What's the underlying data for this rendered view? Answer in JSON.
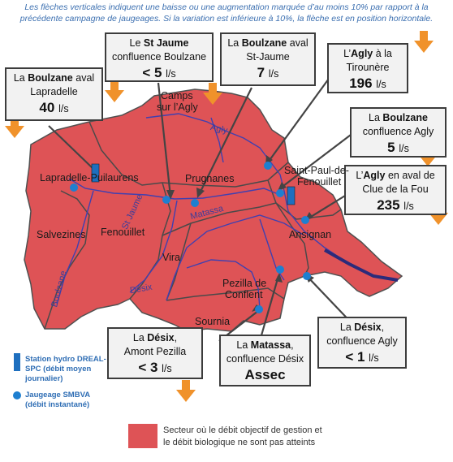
{
  "note": {
    "line1": "Les flèches verticales indiquent une baisse ou une augmentation marquée d’au moins 10% par rapport à la",
    "line2": "précédente campagne de jaugeages. Si la variation est inférieure à 10%, la flèche est en position horizontale."
  },
  "stations": [
    {
      "pre": "La ",
      "river": "Boulzane",
      "post": " aval",
      "loc": "Lapradelle",
      "value": "40",
      "unit": "l/s",
      "trend": "down"
    },
    {
      "pre": "Le ",
      "river": "St Jaume",
      "post": "",
      "loc": "confluence Boulzane",
      "value": "< 5",
      "unit": "l/s",
      "trend": "down"
    },
    {
      "pre": "La ",
      "river": "Boulzane",
      "post": " aval",
      "loc": "St-Jaume",
      "value": "7",
      "unit": "l/s",
      "trend": "down"
    },
    {
      "pre": "L’",
      "river": "Agly",
      "post": " à la",
      "loc": "Tirounère",
      "value": "196",
      "unit": "l/s",
      "trend": "down"
    },
    {
      "pre": "La ",
      "river": "Boulzane",
      "post": "",
      "loc": "confluence Agly",
      "value": "5",
      "unit": "l/s",
      "trend": "down"
    },
    {
      "pre": "L’",
      "river": "Agly",
      "post": " en aval de",
      "loc": "Clue de la Fou",
      "value": "235",
      "unit": "l/s",
      "trend": "down"
    },
    {
      "pre": "La ",
      "river": "Désix",
      "post": ",",
      "loc": "Amont Pezilla",
      "value": "< 3",
      "unit": "l/s",
      "trend": "down"
    },
    {
      "pre": "La ",
      "river": "Matassa",
      "post": ",",
      "loc": "confluence Désix",
      "value": "Assec",
      "unit": "",
      "trend": "none"
    },
    {
      "pre": "La ",
      "river": "Désix",
      "post": ",",
      "loc": "confluence Agly",
      "value": "< 1",
      "unit": "l/s",
      "trend": "none"
    }
  ],
  "places": {
    "camps": "Camps",
    "camps2": "sur l’Agly",
    "lapradelle": "Lapradelle-Puilaurens",
    "prugnanes": "Prugnanes",
    "stpaul": "Saint-Paul-de-",
    "stpaul2": "Fenouillet",
    "salvezines": "Salvezines",
    "fenouillet": "Fenouillet",
    "ansignan": "Ansignan",
    "vira": "Vira",
    "pezilla": "Pezilla de",
    "pezilla2": "Conflent",
    "sournia": "Sournia"
  },
  "rivers": {
    "agly": "Agly",
    "stjaume": "St Jaume",
    "matassa": "Matassa",
    "desix": "Désix",
    "boulzane": "Boulzane"
  },
  "legend": {
    "hydro1": "Station hydro DREAL-",
    "hydro2": "SPC (débit moyen",
    "hydro3": "journalier)",
    "gauge1": "Jaugeage SMBVA",
    "gauge2": "(débit instantané)",
    "sector1": "Secteur où le débit objectif de gestion et",
    "sector2": "le débit biologique ne sont pas atteints"
  },
  "colors": {
    "sector": "#de5356",
    "border": "#505050",
    "river": "#4040b0",
    "gauge": "#1e7fd0",
    "station": "#1e6fbf",
    "arrow": "#f0922b"
  }
}
